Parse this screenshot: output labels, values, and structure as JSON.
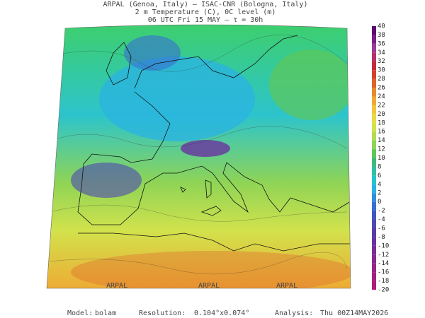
{
  "header": {
    "lines": [
      "ARPAL (Genoa, Italy)  –  ISAC-CNR (Bologna, Italy)",
      "2 m Temperature (C), 0C level (m)",
      "06 UTC Fri 15 MAY  –  τ = 30h"
    ]
  },
  "colorbar": {
    "labels": [
      40,
      38,
      36,
      34,
      32,
      30,
      28,
      26,
      24,
      22,
      20,
      18,
      16,
      14,
      12,
      10,
      8,
      6,
      4,
      2,
      0,
      -2,
      -4,
      -6,
      -8,
      -10,
      -12,
      -14,
      -16,
      -18,
      -20
    ],
    "colors": [
      "#5c0a6e",
      "#7b1e86",
      "#9c3a96",
      "#b8306a",
      "#c8283c",
      "#d8402a",
      "#e0602a",
      "#e88a2e",
      "#eeaa34",
      "#f0c63c",
      "#e8da44",
      "#d2e24c",
      "#b4dc50",
      "#8ed456",
      "#5ec85a",
      "#3ebc7a",
      "#2cc0a8",
      "#26c4cc",
      "#2ab4e0",
      "#3090dc",
      "#3870d0",
      "#4058c0",
      "#4c48b4",
      "#5a3ca8",
      "#6a32a0",
      "#7a2c98",
      "#8a2890",
      "#982488",
      "#a42080",
      "#b01c78"
    ]
  },
  "watermark": "ARPAL",
  "footer": {
    "model_label": "Model:",
    "model": "bolam",
    "resolution_label": "Resolution:",
    "resolution": "0.104°x0.074°",
    "analysis_label": "Analysis:",
    "analysis": "Thu 00Z14MAY2026"
  }
}
